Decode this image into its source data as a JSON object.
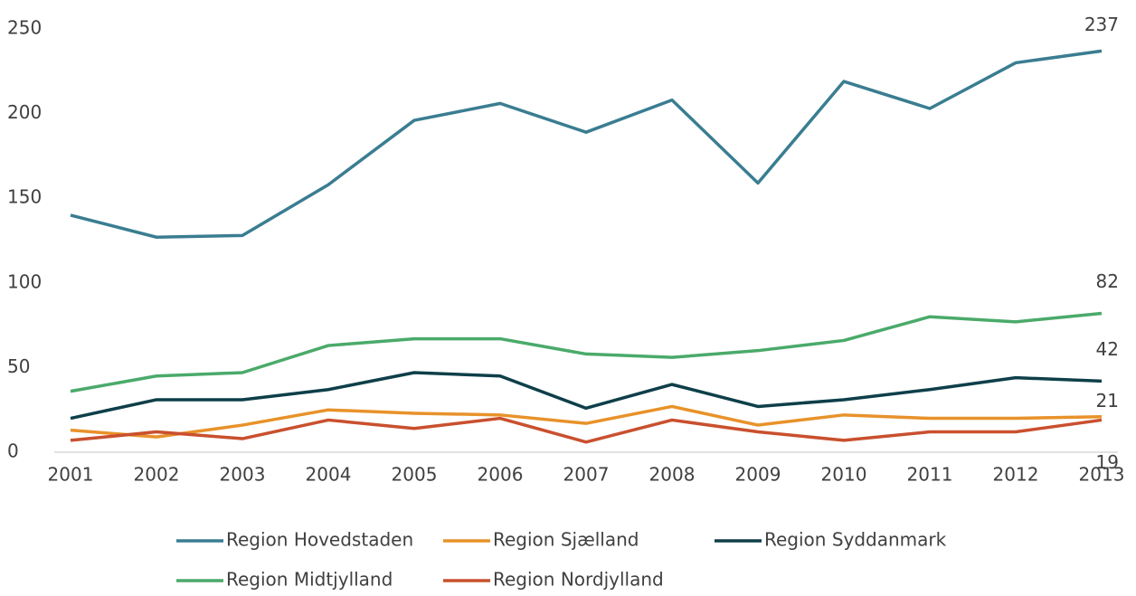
{
  "chart_data": {
    "type": "line",
    "categories": [
      "2001",
      "2002",
      "2003",
      "2004",
      "2005",
      "2006",
      "2007",
      "2008",
      "2009",
      "2010",
      "2011",
      "2012",
      "2013"
    ],
    "ylim": [
      0,
      250
    ],
    "yticks": [
      0,
      50,
      100,
      150,
      200,
      250
    ],
    "series": [
      {
        "name": "Region Hovedstaden",
        "color": "#3a7d91",
        "values": [
          140,
          127,
          128,
          158,
          196,
          206,
          189,
          208,
          159,
          219,
          203,
          230,
          237
        ]
      },
      {
        "name": "Region Sjælland",
        "color": "#e8922a",
        "values": [
          13,
          9,
          16,
          25,
          23,
          22,
          17,
          27,
          16,
          22,
          20,
          20,
          21
        ]
      },
      {
        "name": "Region Syddanmark",
        "color": "#0e3f4a",
        "values": [
          20,
          31,
          31,
          37,
          47,
          45,
          26,
          40,
          27,
          31,
          37,
          44,
          42
        ]
      },
      {
        "name": "Region Midtjylland",
        "color": "#4aaa6a",
        "values": [
          36,
          45,
          47,
          63,
          67,
          67,
          58,
          56,
          60,
          66,
          80,
          77,
          82
        ]
      },
      {
        "name": "Region Nordjylland",
        "color": "#c9502e",
        "values": [
          7,
          12,
          8,
          19,
          14,
          20,
          6,
          19,
          12,
          7,
          12,
          12,
          19
        ]
      }
    ]
  }
}
